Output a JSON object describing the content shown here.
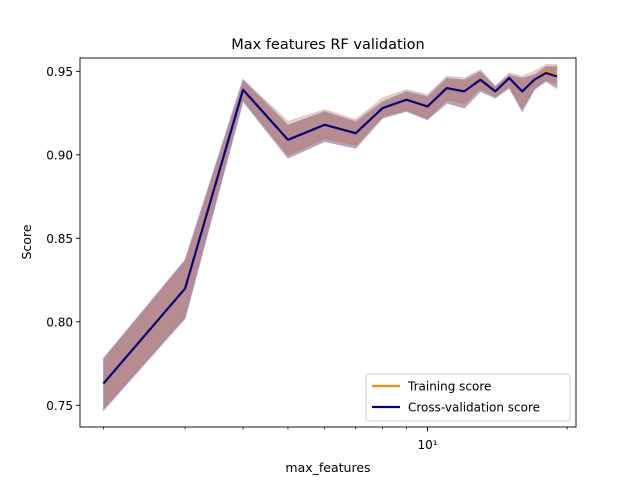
{
  "chart_data": {
    "type": "line",
    "title": "Max features RF validation",
    "xlabel": "max_features",
    "ylabel": "Score",
    "xscale": "log",
    "xlim": [
      1.78,
      20.9
    ],
    "ylim": [
      0.737,
      0.958
    ],
    "x_ticks": [
      {
        "value": 10,
        "label": "10¹"
      }
    ],
    "x_minor_ticks": [
      2,
      3,
      4,
      5,
      6,
      7,
      8,
      9,
      20
    ],
    "y_ticks": [
      {
        "value": 0.75,
        "label": "0.75"
      },
      {
        "value": 0.8,
        "label": "0.80"
      },
      {
        "value": 0.85,
        "label": "0.85"
      },
      {
        "value": 0.9,
        "label": "0.90"
      },
      {
        "value": 0.95,
        "label": "0.95"
      }
    ],
    "x": [
      2,
      3,
      4,
      5,
      6,
      7,
      8,
      9,
      10,
      11,
      12,
      13,
      14,
      15,
      16,
      17,
      18,
      19
    ],
    "series": [
      {
        "name": "Training score",
        "color": "#ff8c00",
        "band_color": "#d8b0a0",
        "values": [
          0.763,
          0.82,
          0.939,
          0.909,
          0.918,
          0.913,
          0.928,
          0.933,
          0.929,
          0.94,
          0.938,
          0.945,
          0.938,
          0.946,
          0.938,
          0.945,
          0.95,
          0.948
        ],
        "lower": [
          0.748,
          0.803,
          0.933,
          0.9,
          0.91,
          0.906,
          0.923,
          0.927,
          0.922,
          0.933,
          0.931,
          0.94,
          0.935,
          0.941,
          0.928,
          0.94,
          0.945,
          0.943
        ],
        "upper": [
          0.778,
          0.837,
          0.945,
          0.92,
          0.927,
          0.921,
          0.934,
          0.939,
          0.936,
          0.947,
          0.946,
          0.951,
          0.941,
          0.949,
          0.947,
          0.95,
          0.954,
          0.954
        ]
      },
      {
        "name": "Cross-validation score",
        "color": "#000080",
        "band_color": "#8b5060",
        "values": [
          0.763,
          0.82,
          0.939,
          0.909,
          0.918,
          0.913,
          0.928,
          0.933,
          0.929,
          0.94,
          0.938,
          0.945,
          0.938,
          0.946,
          0.938,
          0.945,
          0.949,
          0.947
        ],
        "lower": [
          0.747,
          0.802,
          0.932,
          0.898,
          0.908,
          0.904,
          0.922,
          0.926,
          0.921,
          0.931,
          0.928,
          0.938,
          0.934,
          0.94,
          0.926,
          0.939,
          0.944,
          0.94
        ],
        "upper": [
          0.778,
          0.837,
          0.945,
          0.918,
          0.926,
          0.92,
          0.932,
          0.938,
          0.935,
          0.946,
          0.945,
          0.95,
          0.941,
          0.948,
          0.946,
          0.948,
          0.953,
          0.953
        ]
      }
    ],
    "legend": {
      "placement": "lower-right",
      "entries": [
        "Training score",
        "Cross-validation score"
      ]
    }
  }
}
